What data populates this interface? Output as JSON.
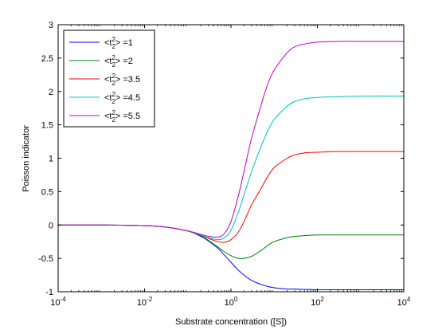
{
  "chart_data": {
    "type": "line",
    "title": "",
    "xlabel": "Substrate concentration ([S])",
    "ylabel": "Poisson indicator",
    "xscale": "log",
    "xlim": [
      0.0001,
      10000
    ],
    "ylim": [
      -1,
      3
    ],
    "grid": false,
    "legend_position": "top-left",
    "x_ticks": [
      {
        "value": 0.0001,
        "base": "10",
        "exp": "-4"
      },
      {
        "value": 0.01,
        "base": "10",
        "exp": "-2"
      },
      {
        "value": 1,
        "base": "10",
        "exp": "0"
      },
      {
        "value": 100,
        "base": "10",
        "exp": "2"
      },
      {
        "value": 10000,
        "base": "10",
        "exp": "4"
      }
    ],
    "y_ticks": [
      {
        "value": -1,
        "label": "-1"
      },
      {
        "value": -0.5,
        "label": "-0.5"
      },
      {
        "value": 0,
        "label": "0"
      },
      {
        "value": 0.5,
        "label": "0.5"
      },
      {
        "value": 1,
        "label": "1"
      },
      {
        "value": 1.5,
        "label": "1.5"
      },
      {
        "value": 2,
        "label": "2"
      },
      {
        "value": 2.5,
        "label": "2.5"
      },
      {
        "value": 3,
        "label": "3"
      }
    ],
    "x": [
      0.0001,
      0.001,
      0.01,
      0.03,
      0.1,
      0.2,
      0.3,
      0.5,
      0.7,
      1,
      1.5,
      2,
      3,
      5,
      7,
      10,
      20,
      30,
      50,
      100,
      300,
      1000,
      10000
    ],
    "series": [
      {
        "name": "<t2^2> =1",
        "legend_main": "<t",
        "legend_sup": "2",
        "legend_sub": "2",
        "legend_tail": "> =1",
        "color": "#0000ff",
        "values": [
          0,
          0,
          -0.01,
          -0.03,
          -0.09,
          -0.17,
          -0.24,
          -0.35,
          -0.45,
          -0.56,
          -0.68,
          -0.75,
          -0.83,
          -0.89,
          -0.92,
          -0.94,
          -0.96,
          -0.96,
          -0.965,
          -0.97,
          -0.97,
          -0.97,
          -0.97
        ]
      },
      {
        "name": "<t2^2> =2",
        "legend_main": "<t",
        "legend_sup": "2",
        "legend_sub": "2",
        "legend_tail": "> =2",
        "color": "#008000",
        "values": [
          0,
          0,
          -0.01,
          -0.03,
          -0.09,
          -0.16,
          -0.23,
          -0.33,
          -0.4,
          -0.46,
          -0.5,
          -0.5,
          -0.47,
          -0.38,
          -0.31,
          -0.25,
          -0.19,
          -0.17,
          -0.16,
          -0.15,
          -0.15,
          -0.15,
          -0.15
        ]
      },
      {
        "name": "<t2^2> =3.5",
        "legend_main": "<t",
        "legend_sup": "2",
        "legend_sub": "2",
        "legend_tail": "> =3.5",
        "color": "#ff0000",
        "values": [
          0,
          0,
          -0.01,
          -0.03,
          -0.09,
          -0.15,
          -0.2,
          -0.25,
          -0.26,
          -0.22,
          -0.1,
          0.05,
          0.3,
          0.55,
          0.72,
          0.86,
          1.0,
          1.05,
          1.08,
          1.09,
          1.1,
          1.1,
          1.1
        ]
      },
      {
        "name": "<t2^2> =4.5",
        "legend_main": "<t",
        "legend_sup": "2",
        "legend_sub": "2",
        "legend_tail": "> =4.5",
        "color": "#00bfbf",
        "values": [
          0,
          0,
          -0.01,
          -0.03,
          -0.09,
          -0.15,
          -0.19,
          -0.22,
          -0.19,
          -0.08,
          0.2,
          0.45,
          0.8,
          1.18,
          1.4,
          1.58,
          1.78,
          1.85,
          1.89,
          1.91,
          1.92,
          1.93,
          1.93
        ]
      },
      {
        "name": "<t2^2> =5.5",
        "legend_main": "<t",
        "legend_sup": "2",
        "legend_sub": "2",
        "legend_tail": "> =5.5",
        "color": "#bf00bf",
        "values": [
          0,
          0,
          -0.01,
          -0.03,
          -0.09,
          -0.14,
          -0.17,
          -0.18,
          -0.13,
          0.05,
          0.45,
          0.8,
          1.3,
          1.8,
          2.1,
          2.32,
          2.58,
          2.67,
          2.71,
          2.74,
          2.75,
          2.75,
          2.75
        ]
      }
    ]
  }
}
